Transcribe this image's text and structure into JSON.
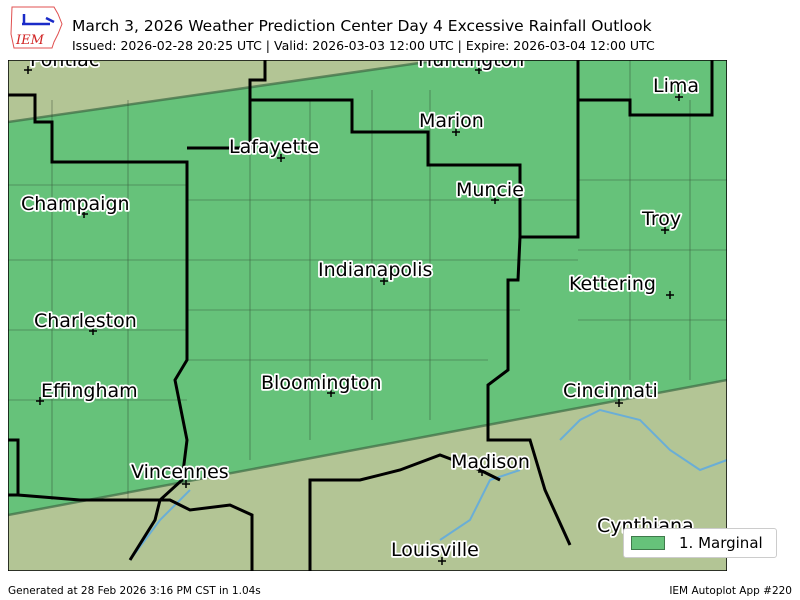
{
  "header": {
    "title": "March 3, 2026 Weather Prediction Center Day 4 Excessive Rainfall Outlook",
    "subtitle": "Issued: 2026-02-28 20:25 UTC | Valid: 2026-03-03 12:00 UTC | Expire: 2026-03-04 12:00 UTC",
    "logo_text": "IEM"
  },
  "legend": {
    "items": [
      {
        "label": "1. Marginal",
        "color": "#66c27a"
      }
    ]
  },
  "colors": {
    "marginal": "#66c27a",
    "terrain": "#b3c595",
    "borders": "#000000",
    "rivers": "#6aaed6"
  },
  "cities": [
    "Pontiac",
    "Huntington",
    "Lima",
    "Marion",
    "Lafayette",
    "Muncie",
    "Champaign",
    "Troy",
    "Indianapolis",
    "Kettering",
    "Charleston",
    "Bloomington",
    "Effingham",
    "Cincinnati",
    "Vincennes",
    "Madison",
    "Cynthiana",
    "Louisville"
  ],
  "footer": {
    "generated": "Generated at 28 Feb 2026 3:16 PM CST in 1.04s",
    "app": "IEM Autoplot App #220"
  }
}
